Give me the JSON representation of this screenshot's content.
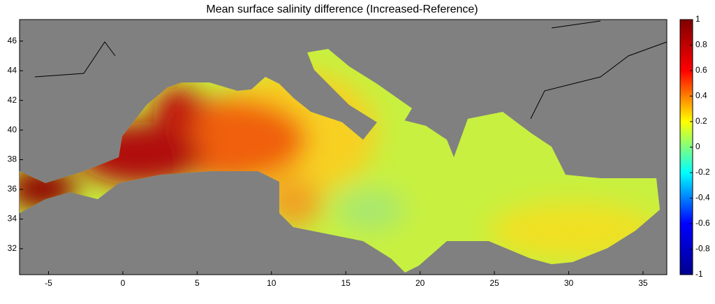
{
  "title": "Mean surface salinity difference (Increased-Reference)",
  "map": {
    "xlim": [
      -6.95,
      36.6
    ],
    "ylim": [
      30.25,
      47.45
    ],
    "xticks": [
      -5,
      0,
      5,
      10,
      15,
      20,
      25,
      30,
      35
    ],
    "yticks": [
      32,
      34,
      36,
      38,
      40,
      42,
      44,
      46
    ],
    "land_color": "#808080"
  },
  "colorbar": {
    "lim": [
      -1,
      1
    ],
    "ticks": [
      -1,
      -0.8,
      -0.6,
      -0.4,
      -0.2,
      0,
      0.2,
      0.4,
      0.6,
      0.8,
      1
    ],
    "colormap": [
      "#00008f",
      "#0000ff",
      "#00ffff",
      "#ffff00",
      "#ff0000",
      "#800000"
    ]
  }
}
